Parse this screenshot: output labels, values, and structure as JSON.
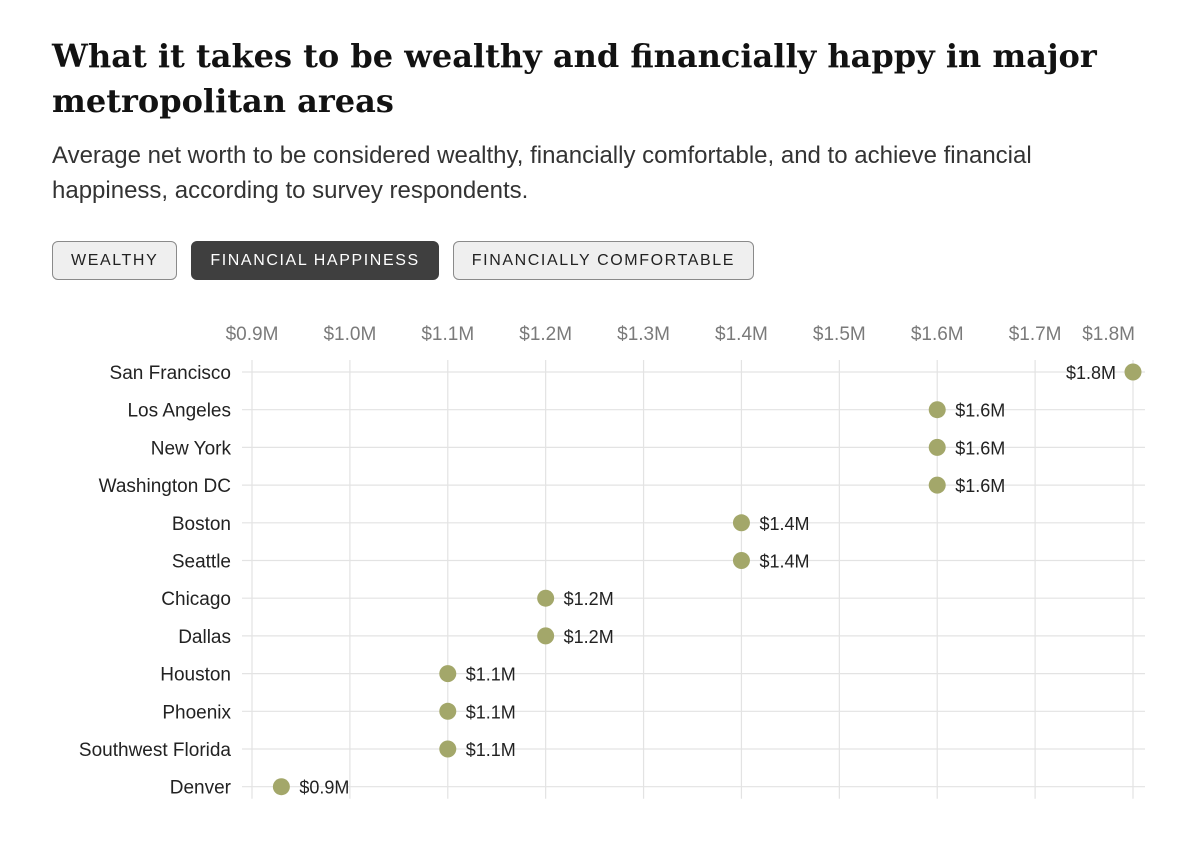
{
  "header": {
    "title": "What it takes to be wealthy and financially happy in major metropolitan areas",
    "subtitle": "Average net worth to be considered wealthy, financially comfortable, and to achieve financial happiness, according to survey respondents."
  },
  "tabs": [
    {
      "label": "Wealthy",
      "active": false
    },
    {
      "label": "Financial happiness",
      "active": true
    },
    {
      "label": "Financially comfortable",
      "active": false
    }
  ],
  "colors": {
    "dot": "#a3a76a",
    "grid": "#e3e3e3",
    "active_tab": "#3f3f3f"
  },
  "chart_data": {
    "type": "scatter",
    "title": "",
    "xlabel": "",
    "ylabel": "",
    "xlim": [
      0.9,
      1.8
    ],
    "x_ticks": [
      0.9,
      1.0,
      1.1,
      1.2,
      1.3,
      1.4,
      1.5,
      1.6,
      1.7,
      1.8
    ],
    "x_tick_labels": [
      "$0.9M",
      "$1.0M",
      "$1.1M",
      "$1.2M",
      "$1.3M",
      "$1.4M",
      "$1.5M",
      "$1.6M",
      "$1.7M",
      "$1.8M"
    ],
    "categories": [
      "San Francisco",
      "Los Angeles",
      "New York",
      "Washington DC",
      "Boston",
      "Seattle",
      "Chicago",
      "Dallas",
      "Houston",
      "Phoenix",
      "Southwest Florida",
      "Denver"
    ],
    "values": [
      1.8,
      1.6,
      1.6,
      1.6,
      1.4,
      1.4,
      1.2,
      1.2,
      1.1,
      1.1,
      1.1,
      0.93
    ],
    "value_labels": [
      "$1.8M",
      "$1.6M",
      "$1.6M",
      "$1.6M",
      "$1.4M",
      "$1.4M",
      "$1.2M",
      "$1.2M",
      "$1.1M",
      "$1.1M",
      "$1.1M",
      "$0.9M"
    ],
    "grid": true
  }
}
